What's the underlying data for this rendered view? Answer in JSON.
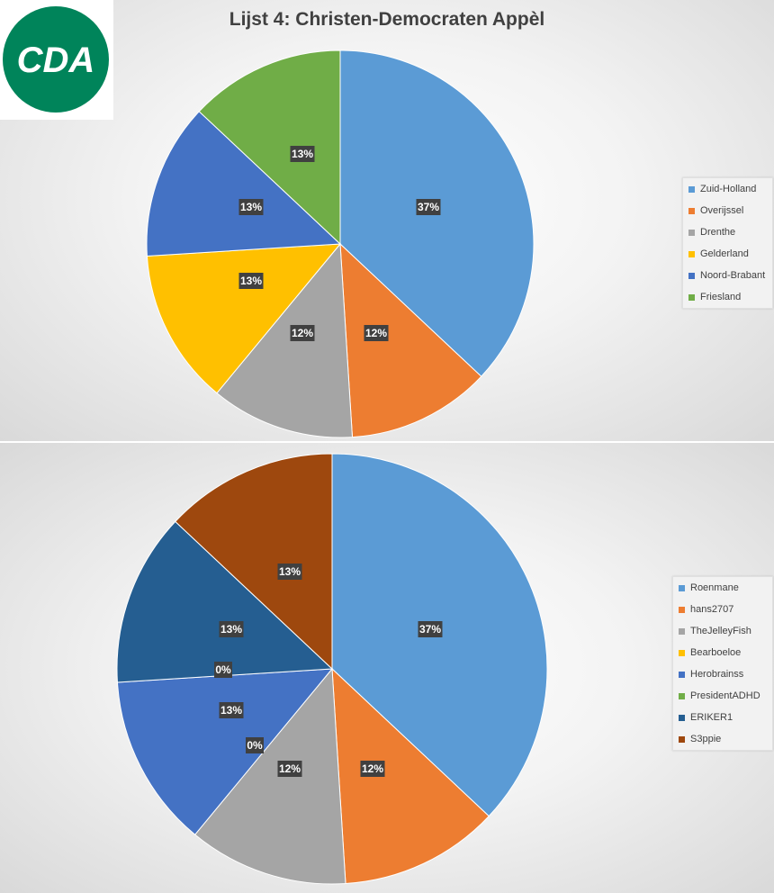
{
  "title": "Lijst 4: Christen-Democraten Appèl",
  "logo": {
    "text": "CDA",
    "color": "#00845a"
  },
  "chart_data": [
    {
      "type": "pie",
      "categories": [
        "Zuid-Holland",
        "Overijssel",
        "Drenthe",
        "Gelderland",
        "Noord-Brabant",
        "Friesland"
      ],
      "values": [
        37,
        12,
        12,
        13,
        13,
        13
      ],
      "labels": [
        "37%",
        "12%",
        "12%",
        "13%",
        "13%",
        "13%"
      ],
      "colors": [
        "#5b9bd5",
        "#ed7d31",
        "#a5a5a5",
        "#ffc000",
        "#4472c4",
        "#70ad47"
      ],
      "legend": "right"
    },
    {
      "type": "pie",
      "categories": [
        "Roenmane",
        "hans2707",
        "TheJelleyFish",
        "Bearboeloe",
        "Herobrainss",
        "PresidentADHD",
        "ERIKER1",
        "S3ppie"
      ],
      "values": [
        37,
        12,
        12,
        0,
        13,
        0,
        13,
        13
      ],
      "labels": [
        "37%",
        "12%",
        "12%",
        "0%",
        "13%",
        "0%",
        "13%",
        "13%"
      ],
      "colors": [
        "#5b9bd5",
        "#ed7d31",
        "#a5a5a5",
        "#ffc000",
        "#4472c4",
        "#70ad47",
        "#255e91",
        "#9e480e"
      ],
      "legend": "right"
    }
  ]
}
